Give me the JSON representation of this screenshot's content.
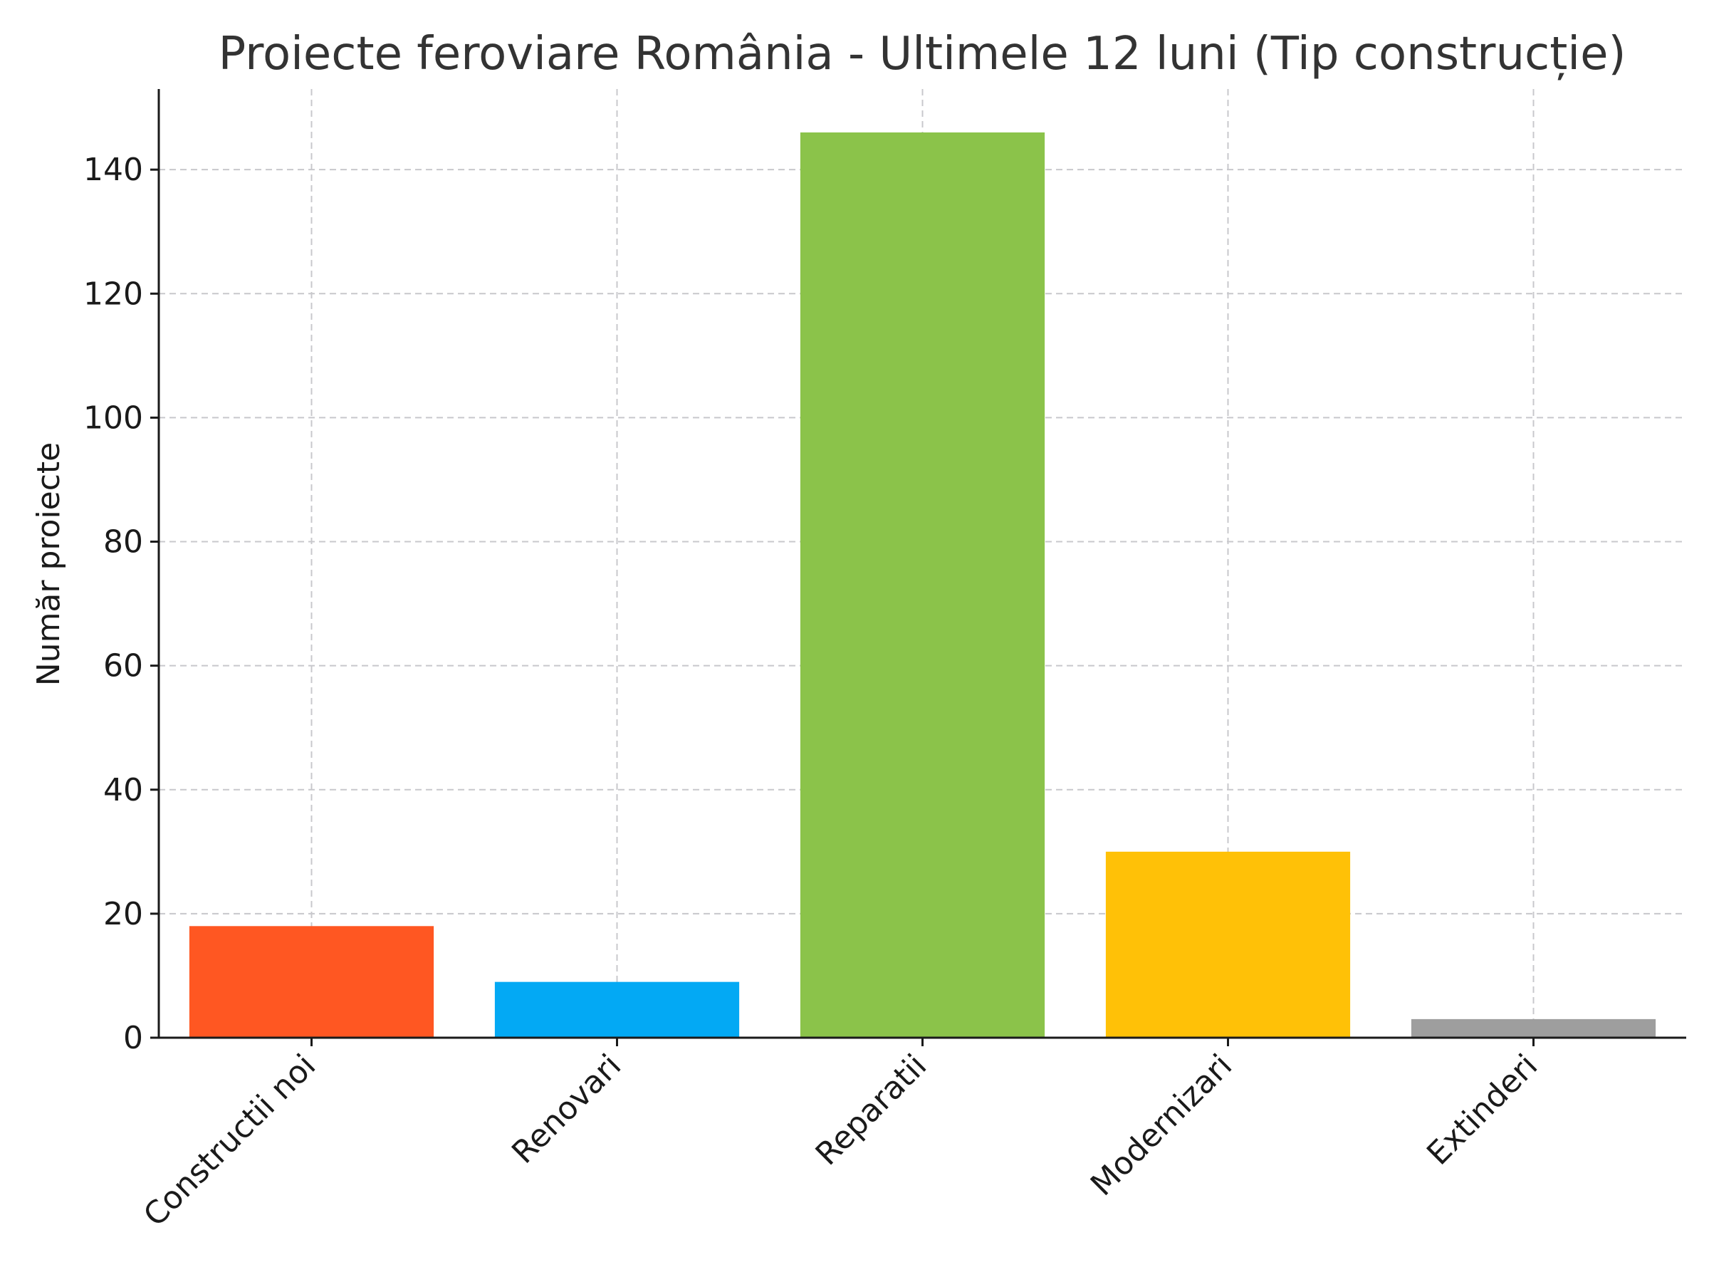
{
  "chart_data": {
    "type": "bar",
    "title": "Proiecte feroviare România - Ultimele 12 luni (Tip construcție)",
    "xlabel": "",
    "ylabel": "Număr proiecte",
    "categories": [
      "Constructii noi",
      "Renovari",
      "Reparatii",
      "Modernizari",
      "Extinderi"
    ],
    "values": [
      18,
      9,
      146,
      30,
      3
    ],
    "colors": [
      "#FF5722",
      "#03A9F4",
      "#8BC34A",
      "#FFC107",
      "#9E9E9E"
    ],
    "ylim": [
      0,
      153
    ],
    "yticks": [
      0,
      20,
      40,
      60,
      80,
      100,
      120,
      140
    ],
    "grid": true,
    "legend": "none"
  }
}
